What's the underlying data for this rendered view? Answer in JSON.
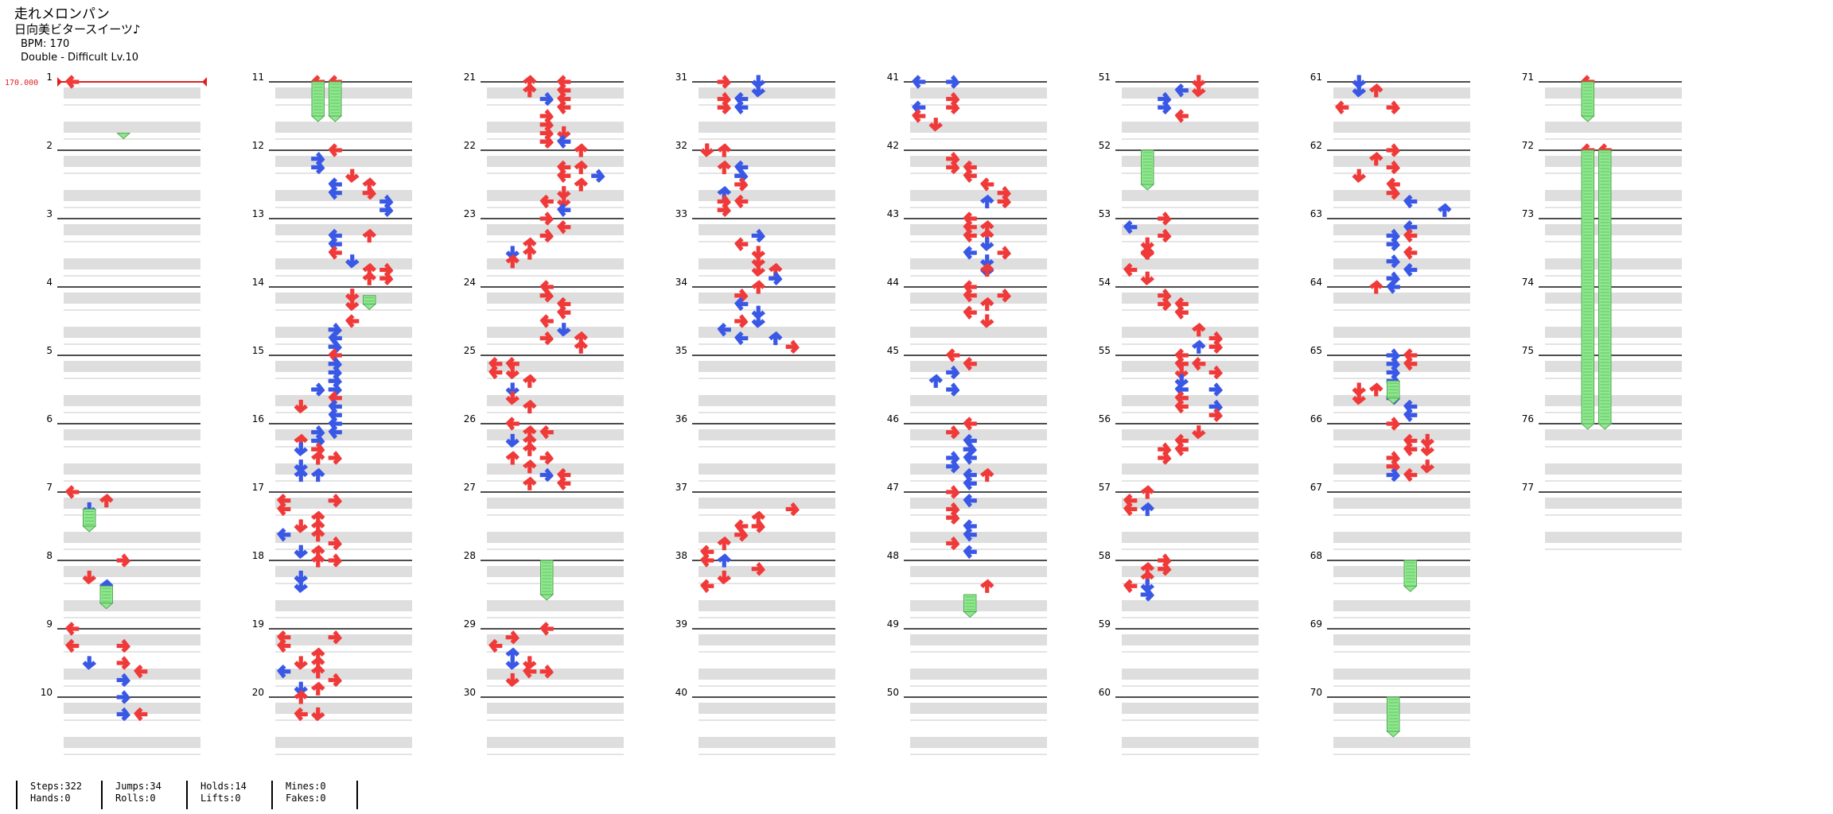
{
  "header": {
    "title": "走れメロンパン",
    "artist": "日向美ビタースイーツ♪",
    "bpm_text": "BPM: 170",
    "chart_text": "Double - Difficult  Lv.10"
  },
  "bpm_marker": "170.000",
  "measures": [
    "1",
    "2",
    "3",
    "4",
    "5",
    "6",
    "7",
    "8",
    "9",
    "10",
    "11",
    "12",
    "13",
    "14",
    "15",
    "16",
    "17",
    "18",
    "19",
    "20",
    "21",
    "22",
    "23",
    "24",
    "25",
    "26",
    "27",
    "28",
    "29",
    "30",
    "31",
    "32",
    "33",
    "34",
    "35",
    "36",
    "37",
    "38",
    "39",
    "40",
    "41",
    "42",
    "43",
    "44",
    "45",
    "46",
    "47",
    "48",
    "49",
    "50",
    "51",
    "52",
    "53",
    "54",
    "55",
    "56",
    "57",
    "58",
    "59",
    "60",
    "61",
    "62",
    "63",
    "64",
    "65",
    "66",
    "67",
    "68",
    "69",
    "70",
    "71",
    "72",
    "73",
    "74",
    "75",
    "76",
    "77"
  ],
  "stats": {
    "steps": "Steps:322",
    "hands": "Hands:0",
    "jumps": "Jumps:34",
    "rolls": "Rolls:0",
    "holds": "Holds:14",
    "lifts": "Lifts:0",
    "mines": "Mines:0",
    "fakes": "Fakes:0"
  },
  "colors": {
    "quarter_note": "#f03a3a",
    "eighth_note": "#3a58e6",
    "hold_body": "#8ee88e",
    "bpm_marker": "#e02020"
  }
}
